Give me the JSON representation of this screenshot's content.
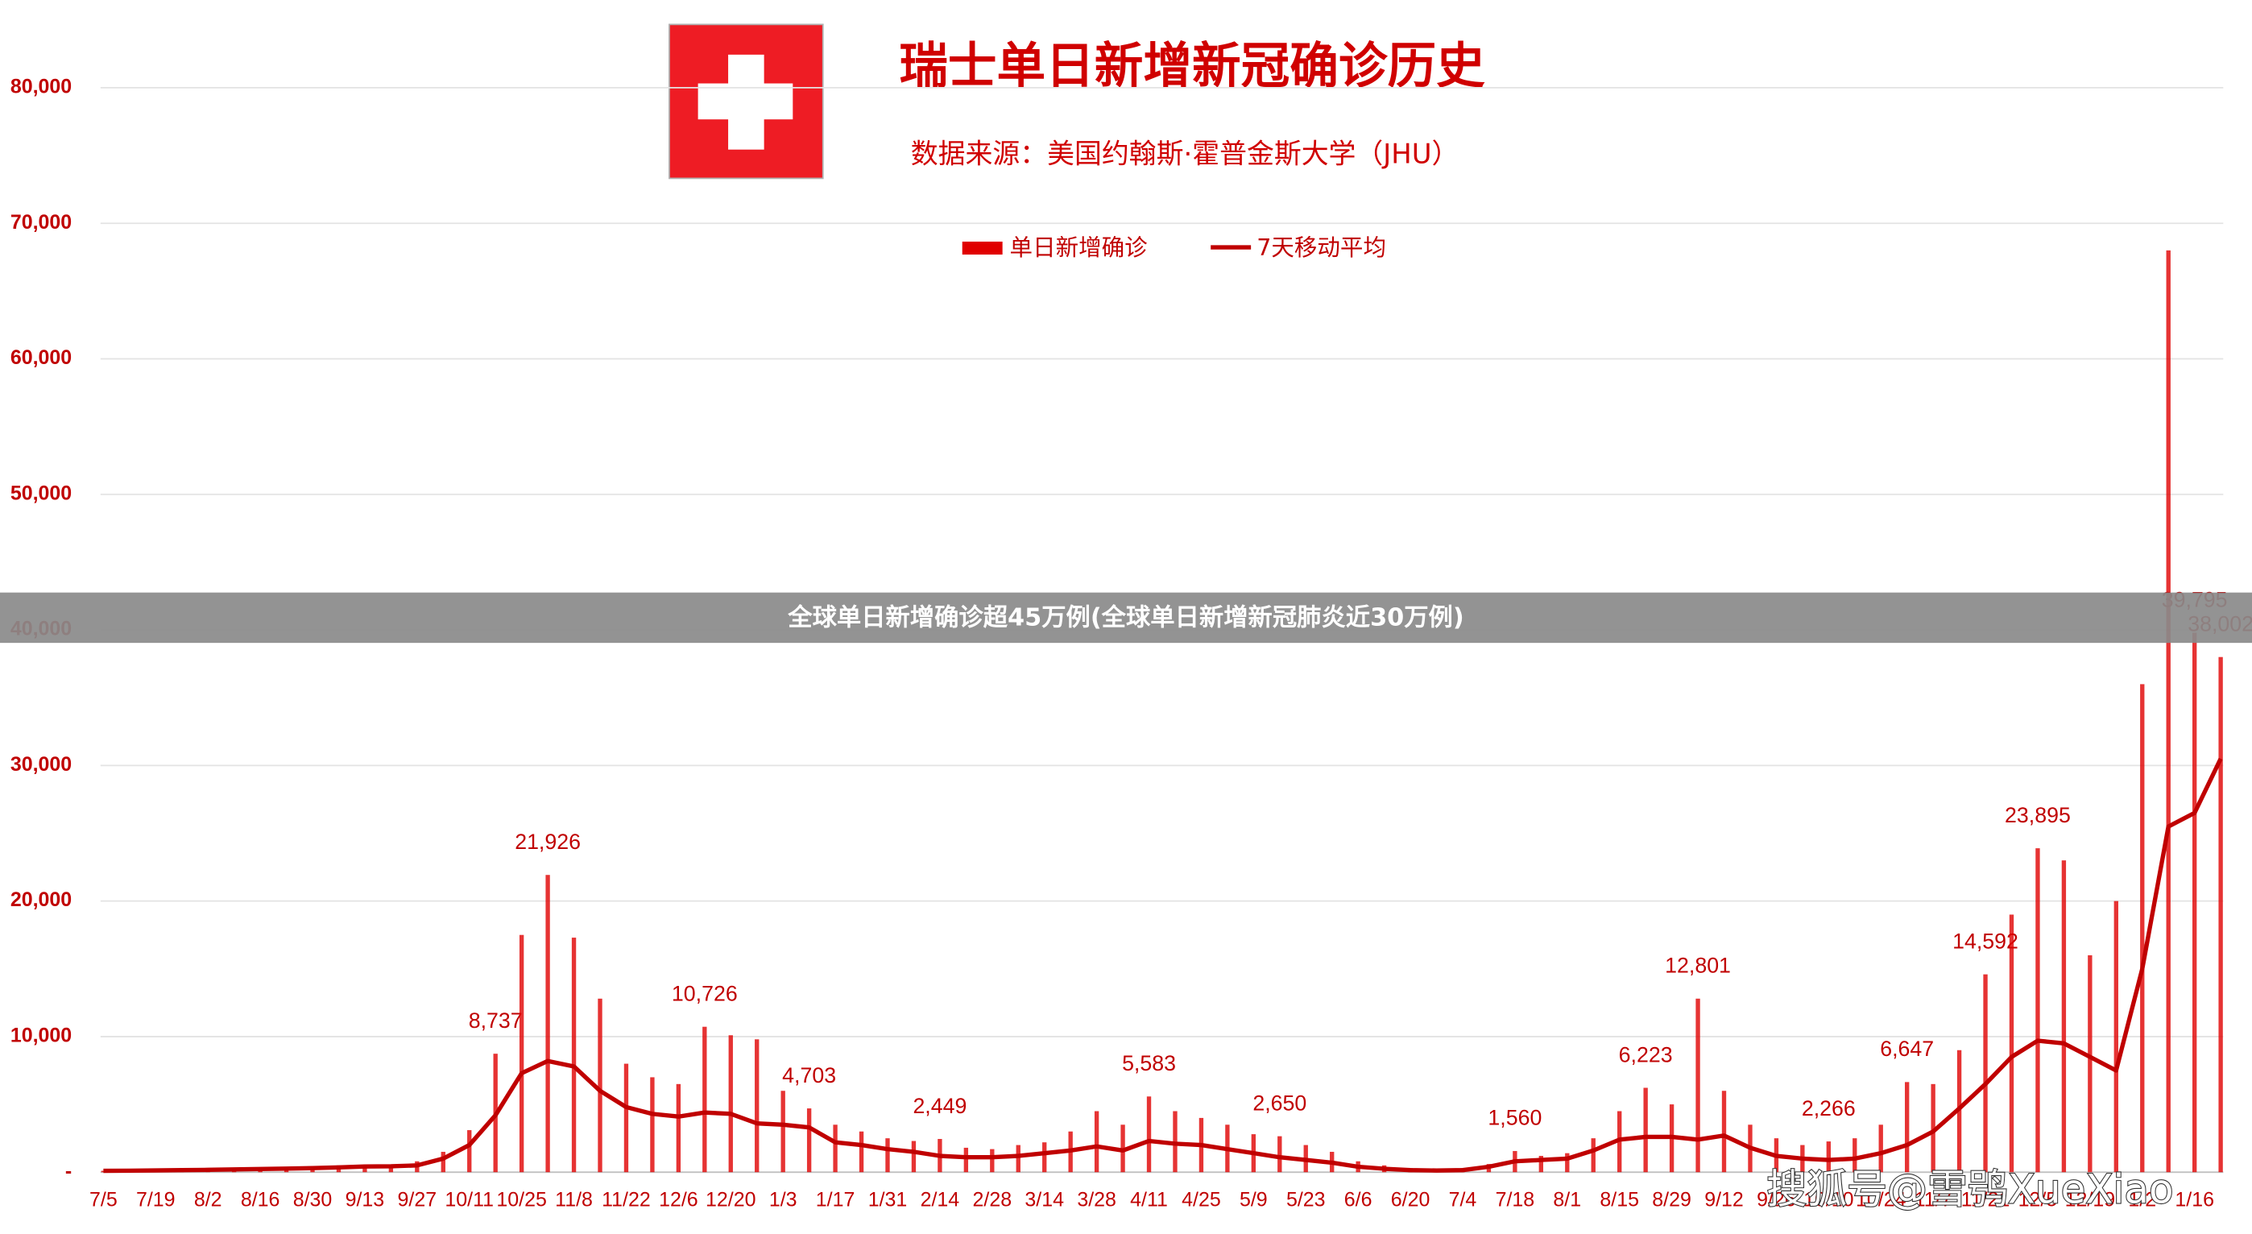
{
  "chart_data": {
    "type": "bar",
    "title": "瑞士单日新增新冠确诊历史",
    "subtitle": "数据来源：美国约翰斯·霍普金斯大学（JHU）",
    "categories": [
      "7/5",
      null,
      "7/19",
      null,
      "8/2",
      null,
      "8/16",
      null,
      "8/30",
      null,
      "9/13",
      null,
      "9/27",
      null,
      "10/11",
      null,
      "10/25",
      null,
      "11/8",
      null,
      "11/22",
      null,
      "12/6",
      null,
      "12/20",
      null,
      "1/3",
      null,
      "1/17",
      null,
      "1/31",
      null,
      "2/14",
      null,
      "2/28",
      null,
      "3/14",
      null,
      "3/28",
      null,
      "4/11",
      null,
      "4/25",
      null,
      "5/9",
      null,
      "5/23",
      null,
      "6/6",
      null,
      "6/20",
      null,
      "7/4",
      null,
      "7/18",
      null,
      "8/1",
      null,
      "8/15",
      null,
      "8/29",
      null,
      "9/12",
      null,
      "9/26",
      null,
      "10/10",
      null,
      "10/24",
      null,
      "11/7",
      null,
      "11/21",
      null,
      "12/5",
      null,
      "12/19",
      null,
      "1/2",
      null,
      "1/16",
      null
    ],
    "series": [
      {
        "name": "单日新增确诊",
        "type": "bar",
        "color": "#e00000",
        "values": [
          100,
          120,
          150,
          180,
          200,
          250,
          300,
          350,
          400,
          500,
          550,
          500,
          800,
          1500,
          3100,
          8737,
          17500,
          21926,
          17300,
          12800,
          8000,
          7000,
          6500,
          10726,
          10100,
          9800,
          6000,
          4703,
          3500,
          3000,
          2500,
          2300,
          2449,
          1800,
          1700,
          2000,
          2200,
          3000,
          4500,
          3500,
          5583,
          4500,
          4000,
          3500,
          2800,
          2650,
          2000,
          1500,
          800,
          500,
          300,
          200,
          300,
          600,
          1560,
          1200,
          1400,
          2500,
          4500,
          6223,
          5000,
          12801,
          6000,
          3500,
          2500,
          2000,
          2266,
          2500,
          3500,
          6647,
          6500,
          9000,
          14592,
          19000,
          23895,
          23000,
          16000,
          20000,
          36000,
          68000,
          39795,
          38002
        ],
        "value_labels": [
          null,
          null,
          null,
          null,
          null,
          null,
          null,
          null,
          null,
          null,
          null,
          null,
          null,
          null,
          null,
          "8,737",
          null,
          "21,926",
          null,
          null,
          null,
          null,
          null,
          "10,726",
          null,
          null,
          null,
          "4,703",
          null,
          null,
          null,
          null,
          "2,449",
          null,
          null,
          null,
          null,
          null,
          null,
          null,
          "5,583",
          null,
          null,
          null,
          null,
          "2,650",
          null,
          null,
          null,
          null,
          null,
          null,
          null,
          null,
          "1,560",
          null,
          null,
          null,
          null,
          "6,223",
          null,
          "12,801",
          null,
          null,
          null,
          null,
          "2,266",
          null,
          null,
          "6,647",
          null,
          null,
          "14,592",
          null,
          "23,895",
          null,
          null,
          null,
          null,
          null,
          "39,795",
          "38,002"
        ]
      },
      {
        "name": "7天移动平均",
        "type": "line",
        "color": "#c00000",
        "values": [
          100,
          110,
          130,
          150,
          170,
          200,
          230,
          260,
          300,
          350,
          420,
          430,
          500,
          1000,
          2000,
          4200,
          7300,
          8200,
          7800,
          6000,
          4800,
          4300,
          4100,
          4400,
          4300,
          3600,
          3500,
          3300,
          2200,
          2000,
          1700,
          1500,
          1200,
          1100,
          1100,
          1200,
          1400,
          1600,
          1900,
          1600,
          2300,
          2100,
          2000,
          1700,
          1400,
          1100,
          900,
          700,
          400,
          250,
          150,
          120,
          150,
          400,
          800,
          900,
          1000,
          1600,
          2400,
          2600,
          2600,
          2400,
          2700,
          1800,
          1200,
          1000,
          900,
          1000,
          1400,
          2000,
          3000,
          4700,
          6500,
          8500,
          9700,
          9500,
          8500,
          7500,
          15000,
          25500,
          26500,
          30500
        ]
      }
    ],
    "ylim": [
      0,
      80000
    ],
    "yticks": [
      {
        "value": 0,
        "label": "-"
      },
      {
        "value": 10000,
        "label": "10,000"
      },
      {
        "value": 20000,
        "label": "20,000"
      },
      {
        "value": 30000,
        "label": "30,000"
      },
      {
        "value": 40000,
        "label": "40,000"
      },
      {
        "value": 50000,
        "label": "50,000"
      },
      {
        "value": 60000,
        "label": "60,000"
      },
      {
        "value": 70000,
        "label": "70,000"
      },
      {
        "value": 80000,
        "label": "80,000"
      }
    ],
    "grid": true,
    "legend": "top"
  },
  "overlay": {
    "banner": "全球单日新增确诊超45万例(全球单日新增新冠肺炎近30万例)",
    "watermark": "搜狐号@雪鸮XueXiao"
  }
}
